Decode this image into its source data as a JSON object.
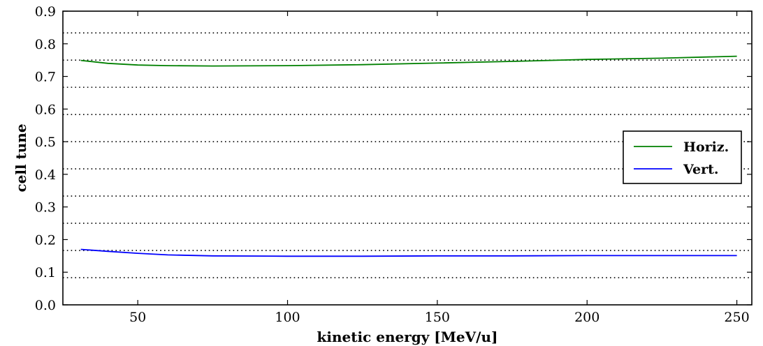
{
  "chart_data": {
    "type": "line",
    "xlabel": "kinetic energy [MeV/u]",
    "ylabel": "cell tune",
    "xlim": [
      25,
      255
    ],
    "ylim": [
      0.0,
      0.9
    ],
    "xticks": [
      50,
      100,
      150,
      200,
      250
    ],
    "yticks": [
      0.0,
      0.1,
      0.2,
      0.3,
      0.4,
      0.5,
      0.6,
      0.7,
      0.8,
      0.9
    ],
    "xtick_labels": [
      "50",
      "100",
      "150",
      "200",
      "250"
    ],
    "ytick_labels": [
      "0.0",
      "0.1",
      "0.2",
      "0.3",
      "0.4",
      "0.5",
      "0.6",
      "0.7",
      "0.8",
      "0.9"
    ],
    "reference_lines": [
      0.0833,
      0.1667,
      0.25,
      0.3333,
      0.4167,
      0.5,
      0.5833,
      0.6667,
      0.75,
      0.8333
    ],
    "legend_position": "center-right",
    "series": [
      {
        "name": "Horiz.",
        "color": "#008000",
        "x": [
          31,
          40,
          50,
          60,
          75,
          100,
          125,
          150,
          175,
          200,
          225,
          250
        ],
        "y": [
          0.749,
          0.74,
          0.735,
          0.733,
          0.732,
          0.733,
          0.736,
          0.741,
          0.746,
          0.752,
          0.756,
          0.762
        ]
      },
      {
        "name": "Vert.",
        "color": "#0000ff",
        "x": [
          31,
          40,
          50,
          60,
          75,
          100,
          125,
          150,
          175,
          200,
          225,
          250
        ],
        "y": [
          0.17,
          0.164,
          0.158,
          0.153,
          0.15,
          0.149,
          0.149,
          0.15,
          0.15,
          0.151,
          0.151,
          0.151
        ]
      }
    ]
  }
}
